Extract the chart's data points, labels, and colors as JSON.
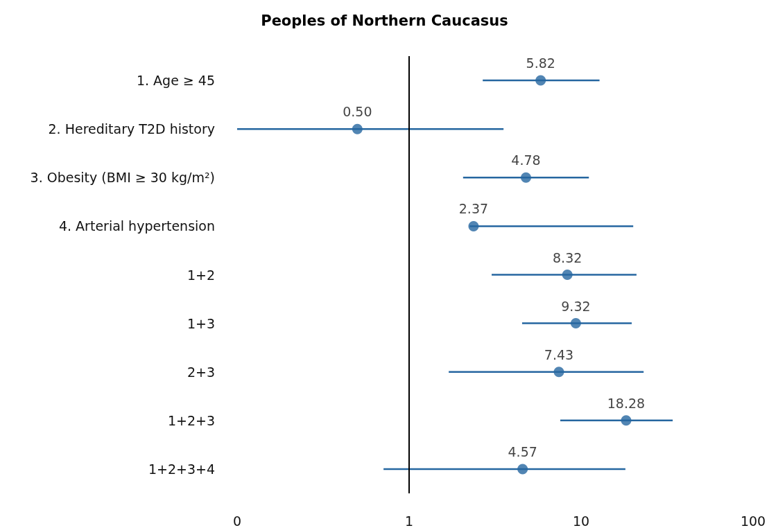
{
  "chart_data": {
    "type": "scatter",
    "title": "Peoples of Northern Caucasus",
    "orientation": "horizontal",
    "log": "x",
    "categories": [
      "1. Age ≥ 45",
      "2. Hereditary T2D history",
      "3. Obesity (BMI ≥ 30 kg/m²)",
      "4. Arterial hypertension",
      "1+2",
      "1+3",
      "2+3",
      "1+2+3",
      "1+2+3+4"
    ],
    "series": [
      {
        "color": "#2566a0",
        "values": [
          5.82,
          0.5,
          4.78,
          2.37,
          8.32,
          9.32,
          7.43,
          18.28,
          4.57
        ],
        "value_labels": [
          "5.82",
          "0.50",
          "4.78",
          "2.37",
          "8.32",
          "9.32",
          "7.43",
          "18.28",
          "4.57"
        ],
        "errors": [
          [
            2.68,
            12.8
          ],
          [
            0.1,
            3.54
          ],
          [
            2.06,
            11.1
          ],
          [
            2.25,
            20.1
          ],
          [
            3.02,
            21.0
          ],
          [
            4.54,
            19.7
          ],
          [
            1.7,
            23.1
          ],
          [
            7.57,
            34.1
          ],
          [
            0.71,
            18.1
          ]
        ]
      }
    ],
    "xlim": [
      0.1,
      100
    ],
    "xticks": [
      {
        "value": 0.1,
        "label": "0"
      },
      1,
      10,
      100
    ],
    "ref_lines": [
      {
        "axis": "x",
        "value": 1,
        "color": "#000000"
      }
    ],
    "marker": "circle",
    "grid": false
  }
}
